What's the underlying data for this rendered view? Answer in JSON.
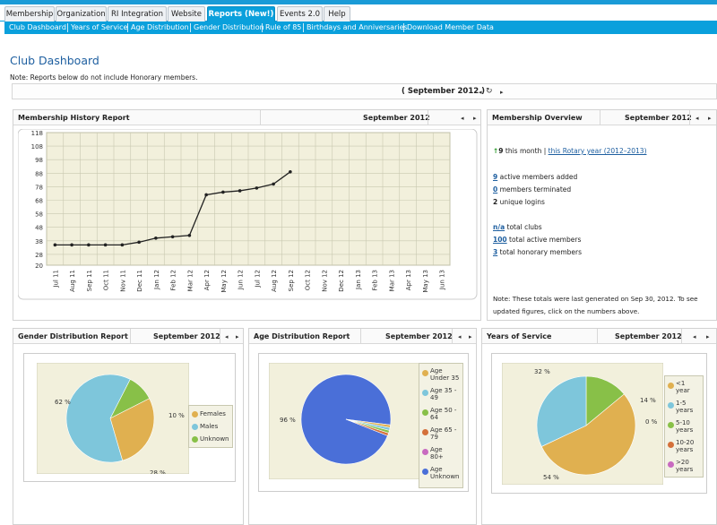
{
  "tabs": [
    {
      "label": "Membership",
      "active": false
    },
    {
      "label": "Organization",
      "active": false
    },
    {
      "label": "RI Integration",
      "active": false
    },
    {
      "label": "Website",
      "active": false
    },
    {
      "label": "Reports (New!)",
      "active": true
    },
    {
      "label": "Events 2.0",
      "active": false
    },
    {
      "label": "Help",
      "active": false
    }
  ],
  "subnav": [
    "Club Dashboard",
    "Years of Service",
    "Age Distribution",
    "Gender Distribution",
    "Rule of 85",
    "Birthdays and Anniversaries",
    "Download Member Data"
  ],
  "page": {
    "title": "Club Dashboard",
    "note": "Note: Reports below do not include Honorary members.",
    "month": "( September 2012 )"
  },
  "history": {
    "title": "Membership History Report",
    "month": "September 2012",
    "chart_data": {
      "type": "line",
      "title": "",
      "xlabel": "",
      "ylabel": "",
      "ylim": [
        20,
        118
      ],
      "y_ticks": [
        20,
        28,
        38,
        48,
        58,
        68,
        78,
        88,
        98,
        108,
        118
      ],
      "categories": [
        "Jul 11",
        "Aug 11",
        "Sep 11",
        "Oct 11",
        "Nov 11",
        "Dec 11",
        "Jan 12",
        "Feb 12",
        "Mar 12",
        "Apr 12",
        "May 12",
        "Jun 12",
        "Jul 12",
        "Aug 12",
        "Sep 12",
        "Oct 12",
        "Nov 12",
        "Dec 12",
        "Jan 13",
        "Feb 13",
        "Mar 13",
        "Apr 13",
        "May 13",
        "Jun 13"
      ],
      "series": [
        {
          "values": [
            35,
            35,
            35,
            35,
            35,
            37,
            40,
            41,
            42,
            72,
            74,
            75,
            77,
            80,
            89,
            null,
            null,
            null,
            null,
            null,
            null,
            null,
            null,
            null
          ]
        }
      ],
      "grid": true
    }
  },
  "overview": {
    "title": "Membership Overview",
    "month": "September 2012",
    "month_count": "9",
    "month_text": "this month |",
    "rotary_link": "this Rotary year (2012–2013)",
    "added_num": "9",
    "added_text": "active members added",
    "term_num": "0",
    "term_text": "members terminated",
    "logins_num": "2",
    "logins_text": "unique logins",
    "clubs_num": "n/a",
    "clubs_text": "total clubs",
    "active_num": "100",
    "active_text": "total active members",
    "honorary_num": "3",
    "honorary_text": "total honorary members",
    "footnote1": "Note: These totals were last generated on Sep 30, 2012. To see",
    "footnote2": "updated figures, click on the numbers above."
  },
  "gender": {
    "title": "Gender Distribution Report",
    "month": "September 2012",
    "chart_data": {
      "type": "pie",
      "categories": [
        "Females",
        "Males",
        "Unknown"
      ],
      "values": [
        28,
        62,
        10
      ],
      "labels": [
        "28 %",
        "62 %",
        "10 %"
      ],
      "colors": [
        "#e0b050",
        "#7ec6db",
        "#88c048"
      ]
    }
  },
  "age": {
    "title": "Age Distribution Report",
    "month": "September 2012",
    "chart_data": {
      "type": "pie",
      "categories": [
        "Age Under 35",
        "Age 35 - 49",
        "Age 50 - 64",
        "Age 65 - 79",
        "Age 80+",
        "Age Unknown"
      ],
      "legend_lines": [
        [
          "Age",
          "Under 35"
        ],
        [
          "Age 35 -",
          "49"
        ],
        [
          "Age 50 -",
          "64"
        ],
        [
          "Age 65 -",
          "79"
        ],
        [
          "Age",
          "80+"
        ],
        [
          "Age",
          "Unknown"
        ]
      ],
      "values": [
        1,
        1,
        1,
        1,
        0,
        96
      ],
      "labels": [
        "",
        "",
        "",
        "",
        "",
        "96 %"
      ],
      "colors": [
        "#e0b050",
        "#7ec6db",
        "#88c048",
        "#d4703a",
        "#c86ac0",
        "#4a6fd8"
      ]
    }
  },
  "years": {
    "title": "Years of Service",
    "month": "September 2012",
    "chart_data": {
      "type": "pie",
      "categories": [
        "<1 year",
        "1-5 years",
        "5-10 years",
        "10-20 years",
        ">20 years"
      ],
      "legend_lines": [
        [
          "<1",
          "year"
        ],
        [
          "1-5",
          "years"
        ],
        [
          "5-10",
          "years"
        ],
        [
          "10-20",
          "years"
        ],
        [
          ">20",
          "years"
        ]
      ],
      "values": [
        54,
        32,
        14,
        0,
        0
      ],
      "labels": [
        "54 %",
        "32 %",
        "14 %",
        "0 %",
        ""
      ],
      "colors": [
        "#e0b050",
        "#7ec6db",
        "#88c048",
        "#d4703a",
        "#c86ac0"
      ]
    }
  }
}
